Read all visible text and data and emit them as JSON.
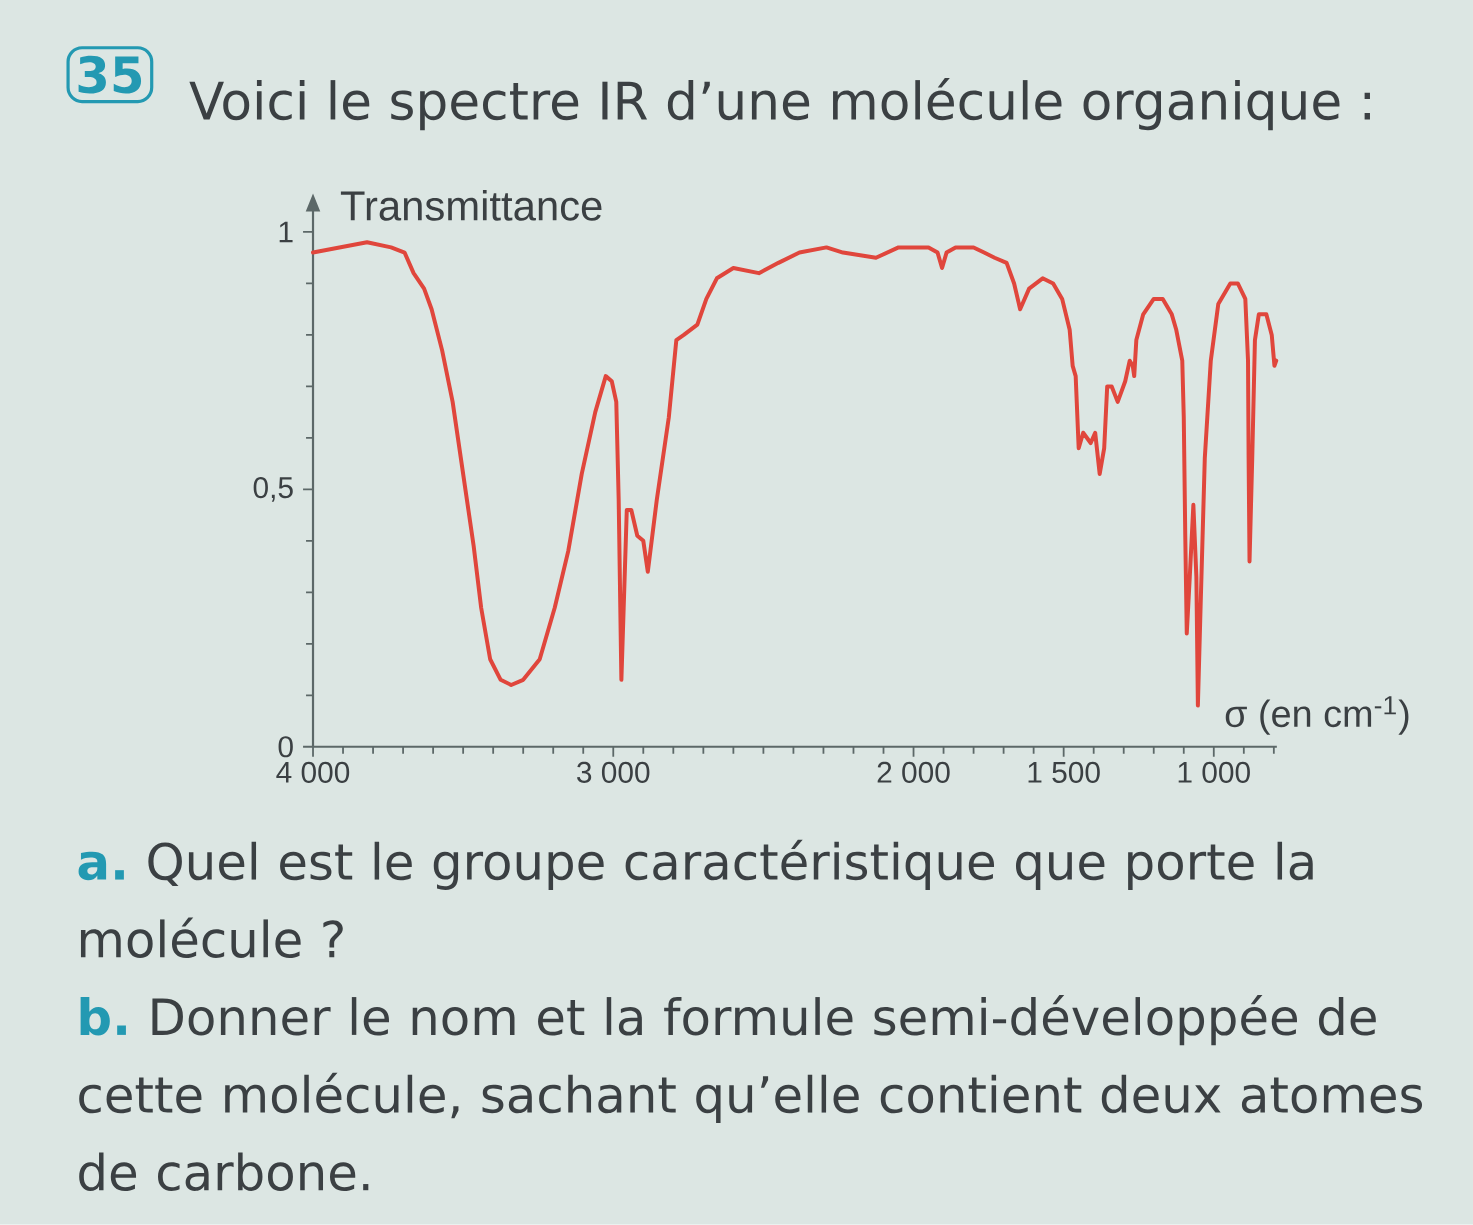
{
  "chart_data": {
    "type": "line",
    "title": "Voici le spectre IR d’une molécule organique :",
    "xlabel": "σ (en cm$^{-1}$)",
    "ylabel": "Transmittance",
    "annotations": [
      "35",
      "a.",
      "Quel est le groupe caractéristique que porte la molécule ?",
      "b.",
      "Donner le nom et la formule semi-développée de cette molécule, sachant qu’elle contient deux atomes de carbone."
    ],
    "xlim": [
      4000,
      790
    ],
    "ylim": [
      0,
      1.04
    ],
    "xticks": [
      {
        "value": 4000,
        "label": "4 000"
      },
      {
        "value": 3900,
        "label": null
      },
      {
        "value": 3800,
        "label": null
      },
      {
        "value": 3700,
        "label": null
      },
      {
        "value": 3600,
        "label": null
      },
      {
        "value": 3500,
        "label": null
      },
      {
        "value": 3400,
        "label": null
      },
      {
        "value": 3300,
        "label": null
      },
      {
        "value": 3200,
        "label": null
      },
      {
        "value": 3100,
        "label": null
      },
      {
        "value": 3000,
        "label": "3 000"
      },
      {
        "value": 2900,
        "label": null
      },
      {
        "value": 2800,
        "label": null
      },
      {
        "value": 2700,
        "label": null
      },
      {
        "value": 2600,
        "label": null
      },
      {
        "value": 2500,
        "label": null
      },
      {
        "value": 2400,
        "label": null
      },
      {
        "value": 2300,
        "label": null
      },
      {
        "value": 2200,
        "label": null
      },
      {
        "value": 2100,
        "label": null
      },
      {
        "value": 2000,
        "label": "2 000"
      },
      {
        "value": 1900,
        "label": null
      },
      {
        "value": 1800,
        "label": null
      },
      {
        "value": 1700,
        "label": null
      },
      {
        "value": 1600,
        "label": null
      },
      {
        "value": 1500,
        "label": "1 500"
      },
      {
        "value": 1400,
        "label": null
      },
      {
        "value": 1300,
        "label": null
      },
      {
        "value": 1200,
        "label": null
      },
      {
        "value": 1100,
        "label": null
      },
      {
        "value": 1000,
        "label": "1 000"
      },
      {
        "value": 900,
        "label": null
      },
      {
        "value": 800,
        "label": null
      }
    ],
    "yticks": [
      0,
      {
        "value": 0.1,
        "label": null
      },
      {
        "value": 0.2,
        "label": null
      },
      {
        "value": 0.3,
        "label": null
      },
      {
        "value": 0.4,
        "label": null
      },
      {
        "value": 0.5,
        "label": "0,5"
      },
      {
        "value": 0.6,
        "label": null
      },
      {
        "value": 0.7,
        "label": null
      },
      {
        "value": 0.8,
        "label": null
      },
      {
        "value": 0.9,
        "label": null
      },
      1
    ],
    "series": [
      {
        "color": "#e0463c",
        "x": [
          4000,
          3820,
          3740,
          3695,
          3665,
          3630,
          3605,
          3570,
          3535,
          3500,
          3465,
          3440,
          3410,
          3375,
          3340,
          3300,
          3245,
          3195,
          3150,
          3105,
          3060,
          3025,
          3005,
          2990,
          2982,
          2973,
          2955,
          2940,
          2920,
          2900,
          2885,
          2855,
          2815,
          2790,
          2765,
          2720,
          2690,
          2655,
          2600,
          2515,
          2450,
          2380,
          2290,
          2235,
          2125,
          2050,
          1950,
          1920,
          1905,
          1890,
          1860,
          1800,
          1765,
          1730,
          1690,
          1665,
          1645,
          1615,
          1570,
          1535,
          1505,
          1480,
          1470,
          1460,
          1450,
          1435,
          1410,
          1395,
          1380,
          1365,
          1355,
          1340,
          1320,
          1295,
          1280,
          1270,
          1265,
          1258,
          1235,
          1200,
          1170,
          1140,
          1125,
          1105,
          1100,
          1095,
          1090,
          1080,
          1068,
          1058,
          1053,
          1045,
          1030,
          1010,
          985,
          945,
          920,
          895,
          886,
          884,
          881,
          872,
          863,
          850,
          825,
          807,
          798,
          792
        ],
        "values": [
          0.96,
          0.98,
          0.97,
          0.96,
          0.92,
          0.89,
          0.85,
          0.77,
          0.67,
          0.53,
          0.39,
          0.27,
          0.17,
          0.13,
          0.12,
          0.13,
          0.17,
          0.27,
          0.38,
          0.53,
          0.65,
          0.72,
          0.71,
          0.67,
          0.48,
          0.13,
          0.46,
          0.46,
          0.41,
          0.4,
          0.34,
          0.48,
          0.64,
          0.79,
          0.8,
          0.82,
          0.87,
          0.91,
          0.93,
          0.92,
          0.94,
          0.96,
          0.97,
          0.96,
          0.95,
          0.97,
          0.97,
          0.96,
          0.93,
          0.96,
          0.97,
          0.97,
          0.96,
          0.95,
          0.94,
          0.9,
          0.85,
          0.89,
          0.91,
          0.9,
          0.87,
          0.81,
          0.74,
          0.72,
          0.58,
          0.61,
          0.59,
          0.61,
          0.53,
          0.58,
          0.7,
          0.7,
          0.67,
          0.71,
          0.75,
          0.74,
          0.72,
          0.79,
          0.84,
          0.87,
          0.87,
          0.84,
          0.81,
          0.75,
          0.64,
          0.41,
          0.22,
          0.33,
          0.47,
          0.33,
          0.08,
          0.25,
          0.56,
          0.75,
          0.86,
          0.9,
          0.9,
          0.87,
          0.75,
          0.56,
          0.36,
          0.56,
          0.79,
          0.84,
          0.84,
          0.8,
          0.74,
          0.75
        ]
      }
    ]
  }
}
